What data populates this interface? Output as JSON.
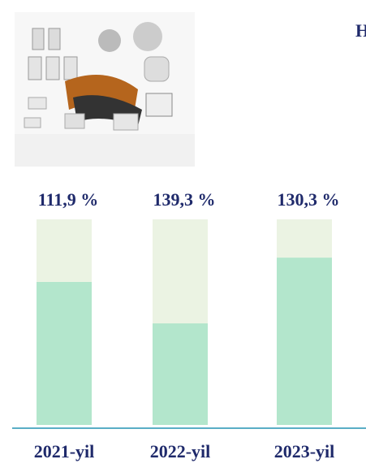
{
  "chart_data": {
    "type": "bar",
    "stacked": true,
    "title": "H",
    "categories": [
      "2021-yil",
      "2022-yil",
      "2023-yil"
    ],
    "annotations": [
      "111,9 %",
      "139,3 %",
      "130,3 %"
    ],
    "series": [
      {
        "color": "#b3e6cc",
        "values": [
          69.6,
          49.4,
          81.4
        ]
      },
      {
        "color": "#ebf3e3",
        "values": [
          30.4,
          50.6,
          18.6
        ]
      }
    ],
    "ylim": [
      0,
      100
    ]
  }
}
